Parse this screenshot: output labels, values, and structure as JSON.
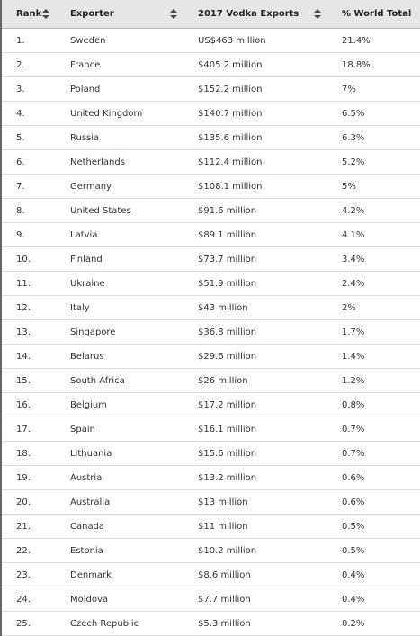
{
  "table": {
    "header": [
      "Rank",
      "Exporter",
      "2017 Vodka Exports",
      "% World Total"
    ],
    "rows": [
      [
        "1.",
        "Sweden",
        "US$463 million",
        "21.4%"
      ],
      [
        "2.",
        "France",
        "$405.2 million",
        "18.8%"
      ],
      [
        "3.",
        "Poland",
        "$152.2 million",
        "7%"
      ],
      [
        "4.",
        "United Kingdom",
        "$140.7 million",
        "6.5%"
      ],
      [
        "5.",
        "Russia",
        "$135.6 million",
        "6.3%"
      ],
      [
        "6.",
        "Netherlands",
        "$112.4 million",
        "5.2%"
      ],
      [
        "7.",
        "Germany",
        "$108.1 million",
        "5%"
      ],
      [
        "8.",
        "United States",
        "$91.6 million",
        "4.2%"
      ],
      [
        "9.",
        "Latvia",
        "$89.1 million",
        "4.1%"
      ],
      [
        "10.",
        "Finland",
        "$73.7 million",
        "3.4%"
      ],
      [
        "11.",
        "Ukraine",
        "$51.9 million",
        "2.4%"
      ],
      [
        "12.",
        "Italy",
        "$43 million",
        "2%"
      ],
      [
        "13.",
        "Singapore",
        "$36.8 million",
        "1.7%"
      ],
      [
        "14.",
        "Belarus",
        "$29.6 million",
        "1.4%"
      ],
      [
        "15.",
        "South Africa",
        "$26 million",
        "1.2%"
      ],
      [
        "16.",
        "Belgium",
        "$17.2 million",
        "0.8%"
      ],
      [
        "17.",
        "Spain",
        "$16.1 million",
        "0.7%"
      ],
      [
        "18.",
        "Lithuania",
        "$15.6 million",
        "0.7%"
      ],
      [
        "19.",
        "Austria",
        "$13.2 million",
        "0.6%"
      ],
      [
        "20.",
        "Australia",
        "$13 million",
        "0.6%"
      ],
      [
        "21.",
        "Canada",
        "$11 million",
        "0.5%"
      ],
      [
        "22.",
        "Estonia",
        "$10.2 million",
        "0.5%"
      ],
      [
        "23.",
        "Denmark",
        "$8.6 million",
        "0.4%"
      ],
      [
        "24.",
        "Moldova",
        "$7.7 million",
        "0.4%"
      ],
      [
        "25.",
        "Czech Republic",
        "$5.3 million",
        "0.2%"
      ]
    ]
  }
}
